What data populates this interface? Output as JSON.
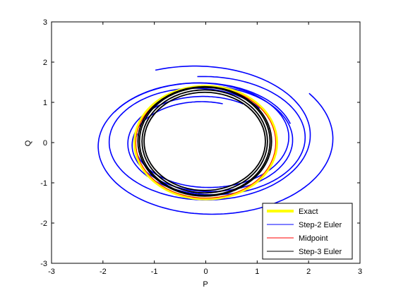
{
  "chart_data": {
    "type": "line",
    "xlabel": "P",
    "ylabel": "Q",
    "xlim": [
      -3,
      3
    ],
    "ylim": [
      -3,
      3
    ],
    "xticks": [
      -3,
      -2,
      -1,
      0,
      1,
      2,
      3
    ],
    "yticks": [
      -3,
      -2,
      -1,
      0,
      1,
      2,
      3
    ],
    "xtick_labels": [
      "-3",
      "-2",
      "-1",
      "0",
      "1",
      "2",
      "3"
    ],
    "ytick_labels": [
      "-3",
      "-2",
      "-1",
      "0",
      "1",
      "2",
      "3"
    ],
    "grid": false,
    "legend": {
      "position": "bottom-right",
      "entries": [
        "Exact",
        "Step-2 Euler",
        "Midpoint",
        "Step-3 Euler"
      ]
    },
    "series": [
      {
        "name": "Step-2 Euler",
        "color": "#0000ff",
        "description_values": "spiral trajectories (multiple arcs)",
        "curves": [
          {
            "cx": 0.0,
            "cy": 0.0,
            "r_start": 1.28,
            "r_end": 1.82,
            "theta_start": 75,
            "turns": 1.05
          },
          {
            "cx": 0.05,
            "cy": 0.05,
            "r_start": 1.35,
            "r_end": 2.05,
            "theta_start": 60,
            "turns": 1.1
          },
          {
            "cx": -0.1,
            "cy": 0.1,
            "r_start": 1.5,
            "r_end": 2.35,
            "theta_start": 40,
            "turns": 1.2
          },
          {
            "cx": 0.0,
            "cy": 0.0,
            "r_start": 1.75,
            "r_end": 2.55,
            "theta_start": 20,
            "turns": 1.05
          },
          {
            "cx": -0.05,
            "cy": 0.05,
            "r_start": 1.3,
            "r_end": 1.95,
            "theta_start": 170,
            "turns": 0.95
          }
        ]
      },
      {
        "name": "Exact",
        "color": "#ffff00",
        "rx": 1.38,
        "ry": 1.4
      },
      {
        "name": "Midpoint",
        "color": "#ff0000",
        "rx": 1.36,
        "ry": 1.38
      },
      {
        "name": "Step-3 Euler",
        "color": "#000000",
        "loops": [
          {
            "rx": 1.27,
            "ry": 1.34
          },
          {
            "rx": 1.22,
            "ry": 1.28
          },
          {
            "rx": 1.18,
            "ry": 1.22
          },
          {
            "rx": 1.3,
            "ry": 1.36
          }
        ]
      }
    ]
  }
}
